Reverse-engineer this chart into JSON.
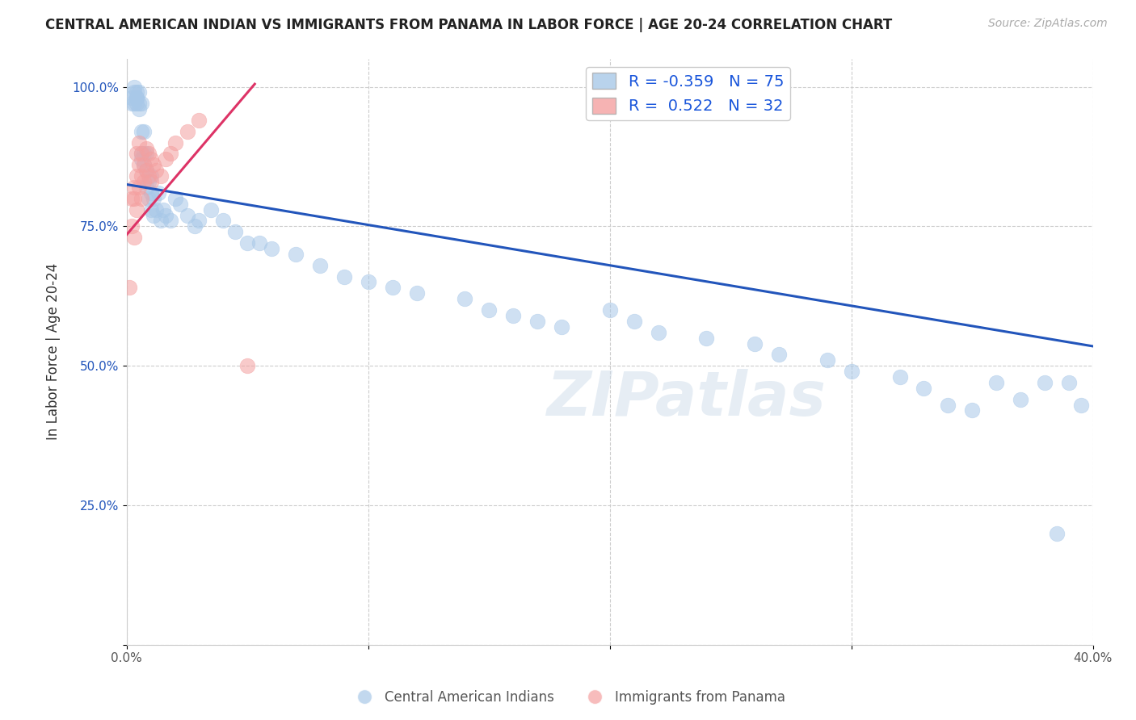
{
  "title": "CENTRAL AMERICAN INDIAN VS IMMIGRANTS FROM PANAMA IN LABOR FORCE | AGE 20-24 CORRELATION CHART",
  "source": "Source: ZipAtlas.com",
  "xlabel": "",
  "ylabel": "In Labor Force | Age 20-24",
  "xlim": [
    0.0,
    0.4
  ],
  "ylim": [
    0.0,
    1.05
  ],
  "xticks": [
    0.0,
    0.1,
    0.2,
    0.3,
    0.4
  ],
  "xticklabels": [
    "0.0%",
    "",
    "",
    "",
    "40.0%"
  ],
  "yticks": [
    0.0,
    0.25,
    0.5,
    0.75,
    1.0
  ],
  "yticklabels": [
    "",
    "25.0%",
    "50.0%",
    "75.0%",
    "100.0%"
  ],
  "grid_color": "#cccccc",
  "background_color": "#ffffff",
  "blue_color": "#a8c8e8",
  "pink_color": "#f4a0a0",
  "blue_line_color": "#2255bb",
  "pink_line_color": "#dd3366",
  "R_blue": -0.359,
  "N_blue": 75,
  "R_pink": 0.522,
  "N_pink": 32,
  "legend_label_blue": "Central American Indians",
  "legend_label_pink": "Immigrants from Panama",
  "watermark": "ZIPatlas",
  "blue_scatter_x": [
    0.002,
    0.002,
    0.003,
    0.003,
    0.003,
    0.004,
    0.004,
    0.004,
    0.004,
    0.005,
    0.005,
    0.005,
    0.006,
    0.006,
    0.006,
    0.006,
    0.007,
    0.007,
    0.007,
    0.008,
    0.008,
    0.008,
    0.009,
    0.009,
    0.01,
    0.01,
    0.01,
    0.011,
    0.011,
    0.012,
    0.013,
    0.014,
    0.015,
    0.016,
    0.018,
    0.02,
    0.022,
    0.025,
    0.028,
    0.03,
    0.035,
    0.04,
    0.045,
    0.05,
    0.055,
    0.06,
    0.07,
    0.08,
    0.09,
    0.1,
    0.11,
    0.12,
    0.14,
    0.15,
    0.16,
    0.17,
    0.18,
    0.2,
    0.21,
    0.22,
    0.24,
    0.26,
    0.27,
    0.29,
    0.3,
    0.32,
    0.33,
    0.34,
    0.35,
    0.36,
    0.37,
    0.38,
    0.385,
    0.39,
    0.395
  ],
  "blue_scatter_y": [
    0.97,
    0.98,
    0.97,
    0.99,
    1.0,
    0.97,
    0.98,
    0.98,
    0.99,
    0.96,
    0.97,
    0.99,
    0.87,
    0.88,
    0.92,
    0.97,
    0.86,
    0.88,
    0.92,
    0.82,
    0.85,
    0.88,
    0.8,
    0.83,
    0.78,
    0.81,
    0.84,
    0.77,
    0.8,
    0.78,
    0.81,
    0.76,
    0.78,
    0.77,
    0.76,
    0.8,
    0.79,
    0.77,
    0.75,
    0.76,
    0.78,
    0.76,
    0.74,
    0.72,
    0.72,
    0.71,
    0.7,
    0.68,
    0.66,
    0.65,
    0.64,
    0.63,
    0.62,
    0.6,
    0.59,
    0.58,
    0.57,
    0.6,
    0.58,
    0.56,
    0.55,
    0.54,
    0.52,
    0.51,
    0.49,
    0.48,
    0.46,
    0.43,
    0.42,
    0.47,
    0.44,
    0.47,
    0.2,
    0.47,
    0.43
  ],
  "pink_scatter_x": [
    0.001,
    0.002,
    0.002,
    0.003,
    0.003,
    0.003,
    0.004,
    0.004,
    0.004,
    0.005,
    0.005,
    0.005,
    0.006,
    0.006,
    0.006,
    0.007,
    0.007,
    0.008,
    0.008,
    0.009,
    0.009,
    0.01,
    0.01,
    0.011,
    0.012,
    0.014,
    0.016,
    0.018,
    0.02,
    0.025,
    0.03,
    0.05
  ],
  "pink_scatter_y": [
    0.64,
    0.75,
    0.8,
    0.73,
    0.8,
    0.82,
    0.78,
    0.84,
    0.88,
    0.82,
    0.86,
    0.9,
    0.8,
    0.84,
    0.88,
    0.83,
    0.86,
    0.85,
    0.89,
    0.84,
    0.88,
    0.83,
    0.87,
    0.86,
    0.85,
    0.84,
    0.87,
    0.88,
    0.9,
    0.92,
    0.94,
    0.5
  ],
  "blue_line_x0": 0.0,
  "blue_line_x1": 0.4,
  "blue_line_y0": 0.825,
  "blue_line_y1": 0.535,
  "pink_line_x0": 0.0,
  "pink_line_x1": 0.053,
  "pink_line_y0": 0.735,
  "pink_line_y1": 1.005
}
